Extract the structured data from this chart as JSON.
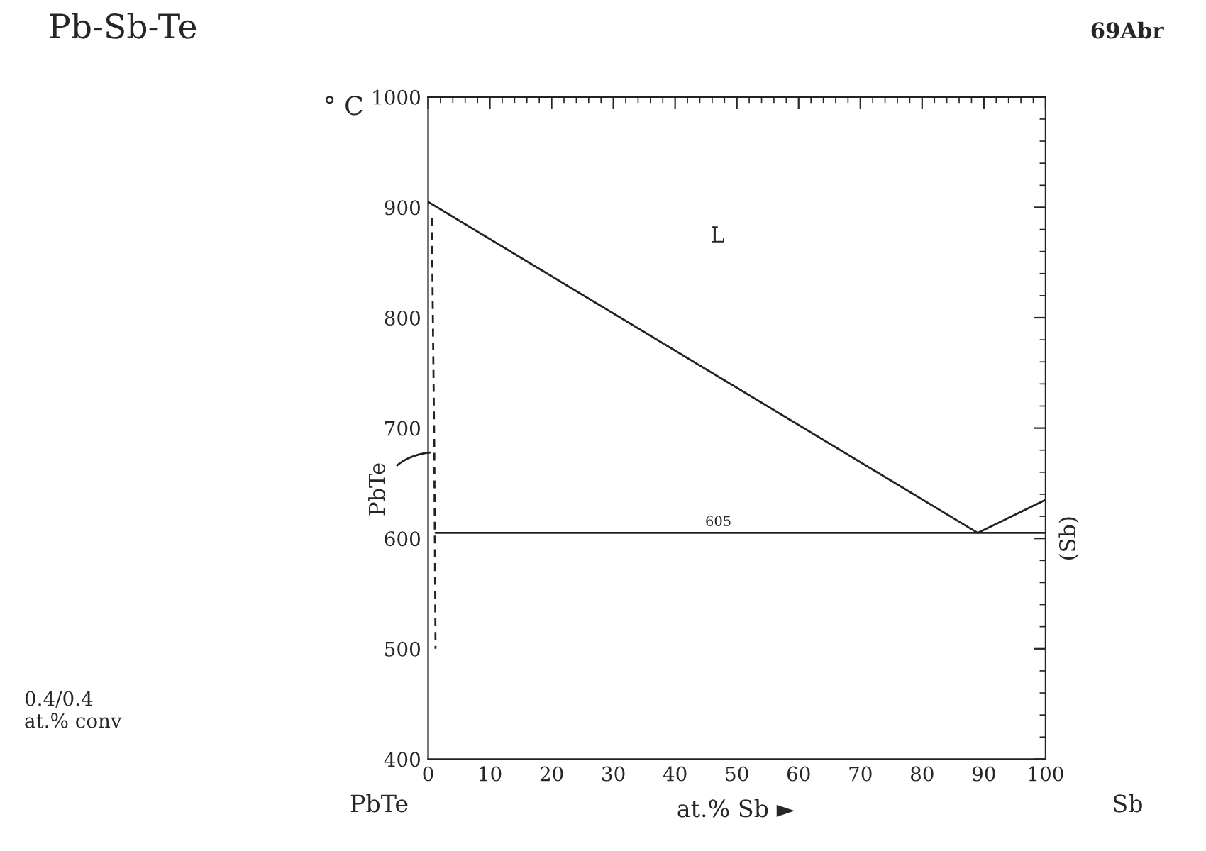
{
  "chart_data": {
    "type": "line",
    "title": "Pb-Sb-Te",
    "subtitle": "69Abr",
    "ylabel": "° C",
    "xlabel": "at.% Sb ►",
    "series": [
      {
        "color": "#222222",
        "x": [
          0,
          89,
          100
        ],
        "values": [
          905,
          605,
          635
        ],
        "line_style": "solid"
      },
      {
        "color": "#222222",
        "x": [
          1.2,
          100
        ],
        "values": [
          605,
          605
        ],
        "line_style": "solid"
      },
      {
        "color": "#222222",
        "x": [
          0.6,
          1.0,
          1.2
        ],
        "values": [
          890,
          680,
          500
        ],
        "line_style": "dashed"
      }
    ],
    "xlim": [
      0,
      100
    ],
    "xticks": [
      0,
      10,
      20,
      30,
      40,
      50,
      60,
      70,
      80,
      90,
      100
    ],
    "ylim": [
      400,
      1000
    ],
    "yticks": [
      400,
      500,
      600,
      700,
      800,
      900,
      1000
    ],
    "grid": false,
    "marker": "none",
    "annotations": [
      "L",
      {
        "text": "605",
        "x": 47,
        "y": 605
      },
      {
        "text": "PbTe",
        "x": 1,
        "y": 678
      },
      {
        "text": "(Sb)",
        "x": 100,
        "y": 600
      },
      "0.4/0.4\nat.% conv",
      "PbTe",
      "Sb"
    ]
  }
}
